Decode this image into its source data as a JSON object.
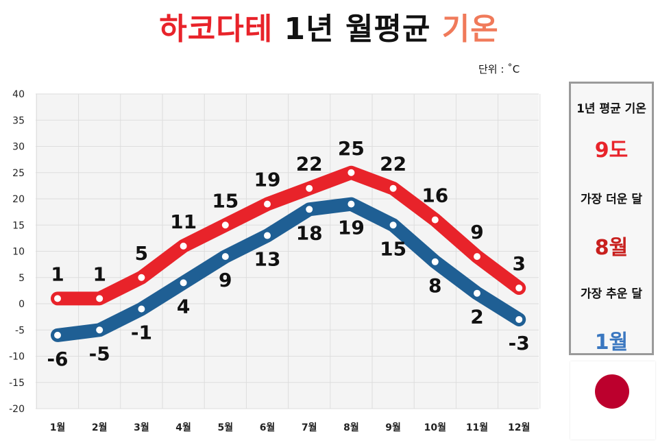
{
  "title": {
    "part1": "하코다테",
    "part2": " 1년 월평균 ",
    "part3": "기온"
  },
  "unit_label": "단위 : ˚C",
  "info": {
    "avg_label": "1년 평균 기온",
    "avg_value": "9도",
    "hottest_label": "가장 더운 달",
    "hottest_value": "8월",
    "coldest_label": "가장 추운 달",
    "coldest_value": "1월"
  },
  "colors": {
    "high": "#e8232a",
    "low": "#1f5f94",
    "title_red": "#e8232a",
    "title_salmon": "#f07a5a",
    "avg_value": "#e8232a",
    "hottest_value": "#c8201e",
    "coldest_value": "#3a77c0",
    "flag_disc": "#bc002d"
  },
  "chart_data": {
    "type": "line",
    "categories": [
      "1월",
      "2월",
      "3월",
      "4월",
      "5월",
      "6월",
      "7월",
      "8월",
      "9월",
      "10월",
      "11월",
      "12월"
    ],
    "series": [
      {
        "values": [
          1,
          1,
          5,
          11,
          15,
          19,
          22,
          25,
          22,
          16,
          9,
          3
        ]
      },
      {
        "values": [
          -6,
          -5,
          -1,
          4,
          9,
          13,
          18,
          19,
          15,
          8,
          2,
          -3
        ]
      }
    ],
    "ylim": [
      -20,
      40
    ],
    "yticks": [
      40,
      35,
      30,
      25,
      20,
      15,
      10,
      5,
      0,
      -5,
      -10,
      -15,
      -20
    ],
    "grid": true,
    "data_labels": true
  }
}
